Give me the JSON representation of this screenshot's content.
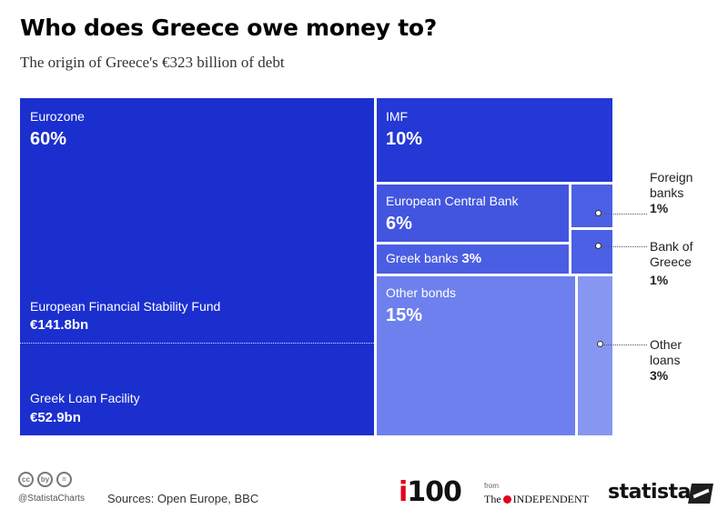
{
  "chart_data": {
    "type": "treemap",
    "title": "Who does Greece owe money to?",
    "subtitle": "The origin of Greece's €323 billion of debt",
    "total": "€323 billion",
    "items": [
      {
        "name": "Eurozone",
        "value": 60,
        "label": "60%",
        "color": "#1b2fcf",
        "components": [
          {
            "name": "European Financial Stability Fund",
            "amount": "€141.8bn"
          },
          {
            "name": "Greek Loan Facility",
            "amount": "€52.9bn"
          }
        ]
      },
      {
        "name": "IMF",
        "value": 10,
        "label": "10%",
        "color": "#2438d6"
      },
      {
        "name": "European Central Bank",
        "value": 6,
        "label": "6%",
        "color": "#4255df"
      },
      {
        "name": "Greek banks",
        "value": 3,
        "label": "3%",
        "color": "#4a5ee3"
      },
      {
        "name": "Other bonds",
        "value": 15,
        "label": "15%",
        "color": "#6d80ee"
      },
      {
        "name": "Foreign banks",
        "value": 1,
        "label": "1%",
        "color": "#4b60e4"
      },
      {
        "name": "Bank of Greece",
        "value": 1,
        "label": "1%",
        "color": "#4b60e4"
      },
      {
        "name": "Other loans",
        "value": 3,
        "label": "3%",
        "color": "#8797f1"
      }
    ]
  },
  "labels": {
    "foreign_banks": [
      "Foreign",
      "banks"
    ],
    "bank_of_greece": [
      "Bank of",
      "Greece"
    ],
    "other_loans": [
      "Other",
      "loans"
    ]
  },
  "footer": {
    "handle": "@StatistaCharts",
    "sources": "Sources: Open Europe, BBC",
    "cc_icons": [
      "cc",
      "by",
      "="
    ],
    "logo_i100": {
      "i": "i",
      "num": "100"
    },
    "logo_from": "from",
    "logo_independent": {
      "the": "The",
      "name": "INDEPENDENT"
    },
    "logo_statista": "statista"
  }
}
